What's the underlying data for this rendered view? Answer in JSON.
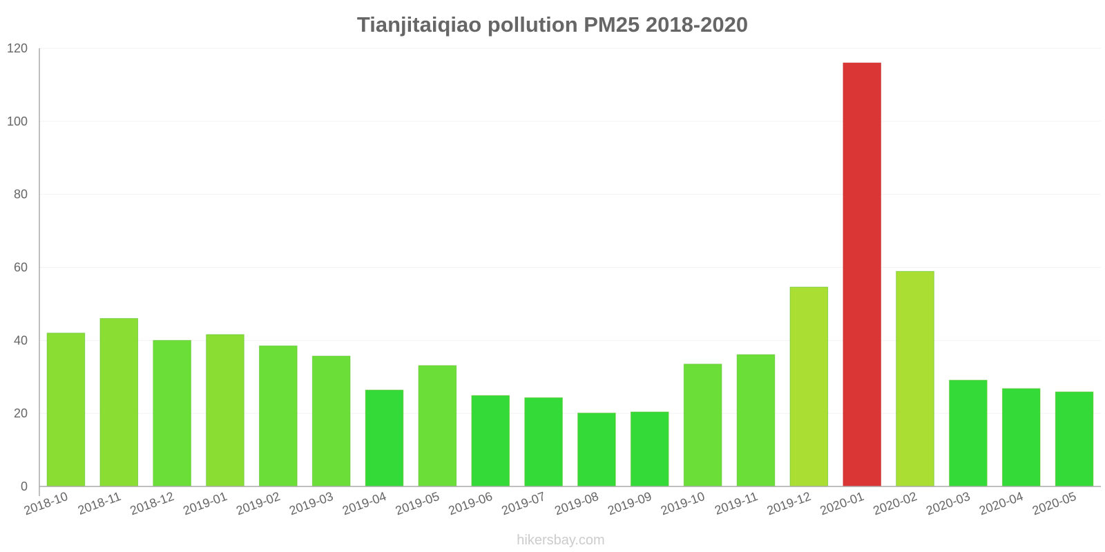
{
  "chart_data": {
    "type": "bar",
    "title": "Tianjitaiqiao pollution PM25 2018-2020",
    "xlabel": "",
    "ylabel": "",
    "ylim": [
      0,
      120
    ],
    "yticks": [
      0,
      20,
      40,
      60,
      80,
      100,
      120
    ],
    "grid": true,
    "categories": [
      "2018-10",
      "2018-11",
      "2018-12",
      "2019-01",
      "2019-02",
      "2019-03",
      "2019-04",
      "2019-05",
      "2019-06",
      "2019-07",
      "2019-08",
      "2019-09",
      "2019-10",
      "2019-11",
      "2019-12",
      "2020-01",
      "2020-02",
      "2020-03",
      "2020-04",
      "2020-05"
    ],
    "values": [
      42,
      46,
      40,
      41.6,
      38.5,
      35.7,
      26.4,
      33.1,
      24.9,
      24.3,
      20.1,
      20.4,
      33.5,
      36.1,
      54.6,
      116,
      58.9,
      29.1,
      26.8,
      25.9
    ],
    "colors": [
      "#89DD33",
      "#89DD33",
      "#6BDE38",
      "#89DD33",
      "#6BDE38",
      "#6BDE38",
      "#34DB38",
      "#6BDE38",
      "#34DB38",
      "#34DB38",
      "#34DB38",
      "#34DB38",
      "#6BDE38",
      "#6BDE38",
      "#AADE33",
      "#DA3636",
      "#AADE33",
      "#34DB38",
      "#34DB38",
      "#34DB38"
    ]
  },
  "footer": {
    "watermark": "hikersbay.com"
  }
}
